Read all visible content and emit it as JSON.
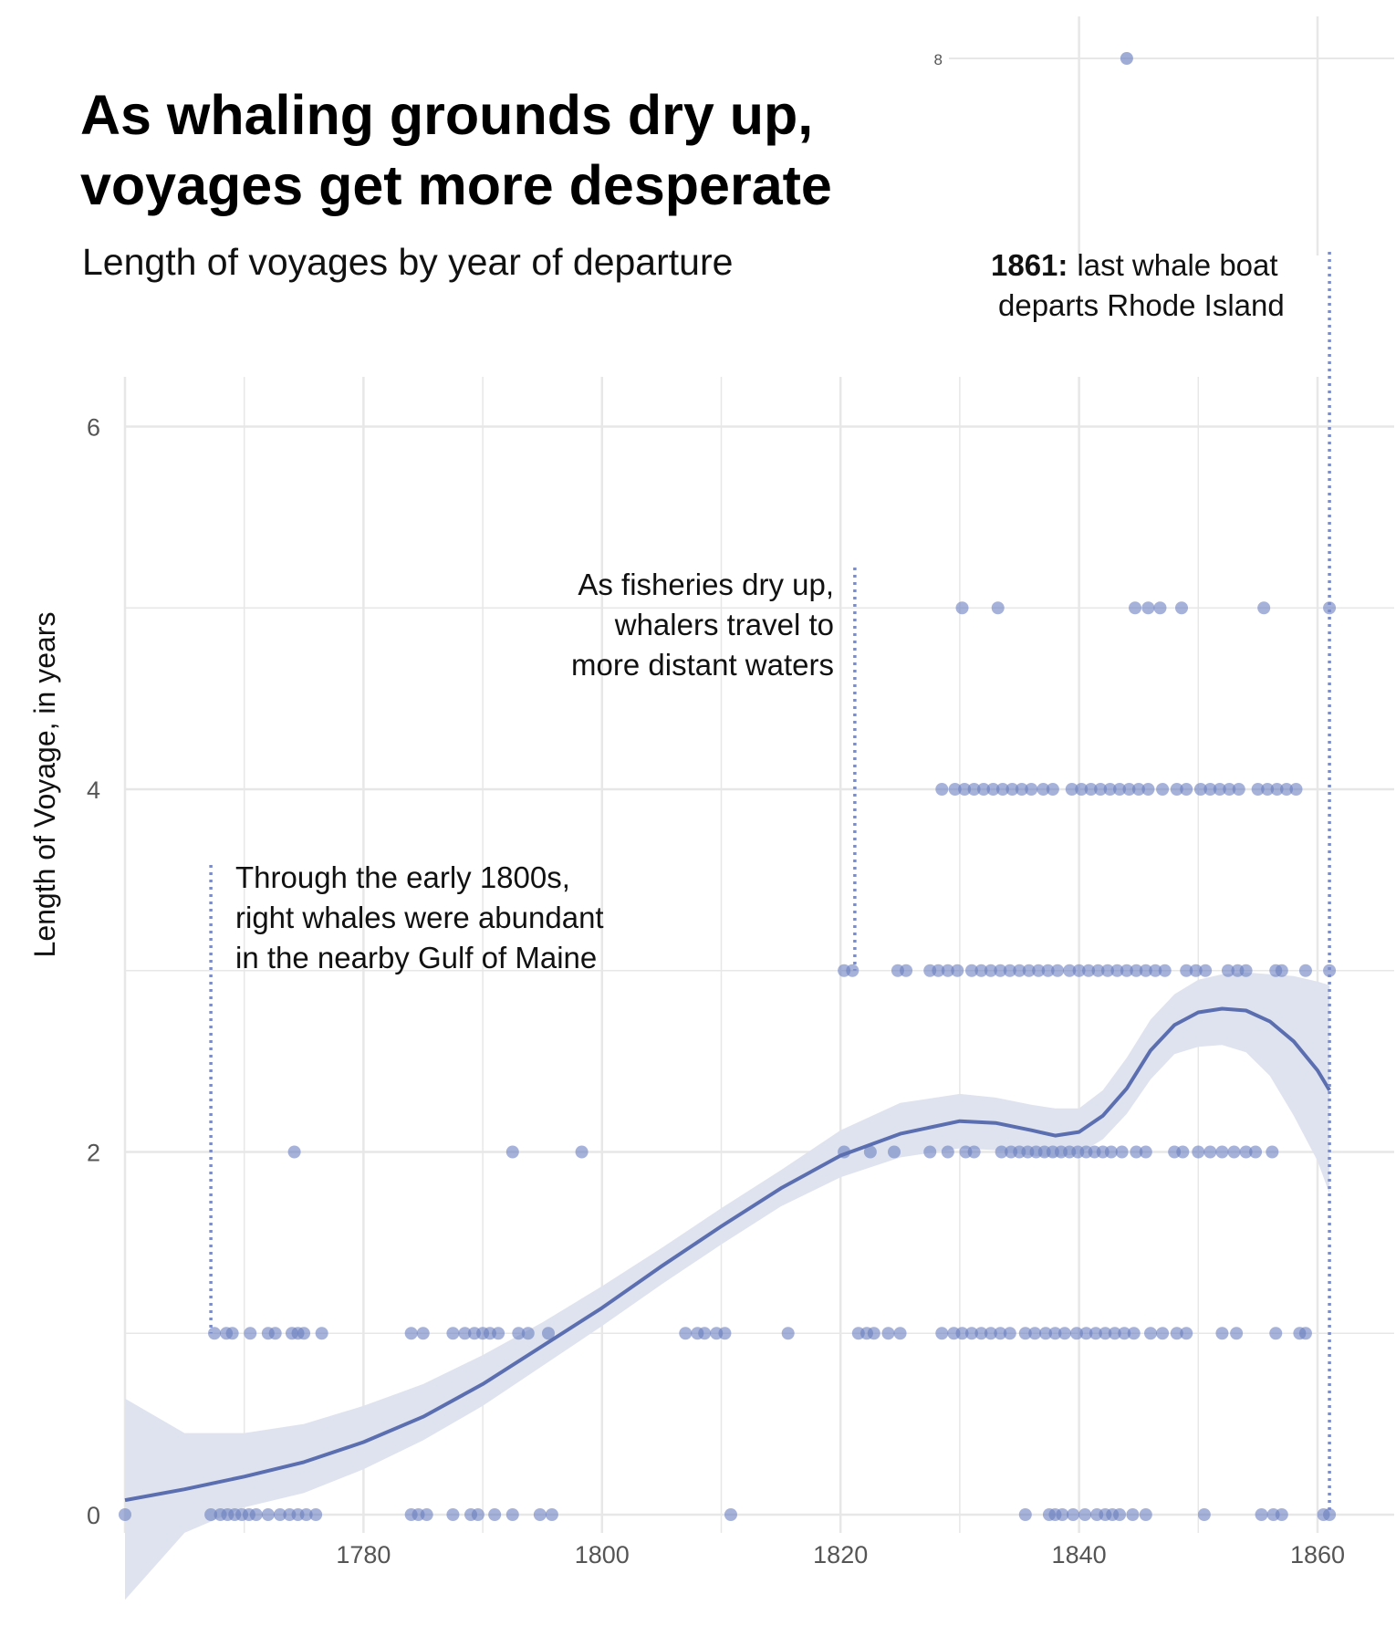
{
  "title": "As whaling grounds dry up, voyages get more desperate",
  "subtitle": "Length of voyages by year of departure",
  "chart_data": {
    "type": "scatter",
    "title": "As whaling grounds dry up, voyages get more desperate",
    "subtitle": "Length of voyages by year of departure",
    "xlabel": "",
    "ylabel": "Length of Voyage, in years",
    "xlim": [
      1760,
      1866
    ],
    "ylim": [
      0,
      6
    ],
    "x_ticks": [
      "1780",
      "1800",
      "1820",
      "1840",
      "1860"
    ],
    "y_ticks": [
      "0",
      "2",
      "4",
      "6"
    ],
    "grid": true,
    "inset": {
      "y_label": "8",
      "points": [
        [
          1844,
          8
        ]
      ]
    },
    "points": [
      [
        1760,
        0
      ],
      [
        1767.2,
        0
      ],
      [
        1768,
        0
      ],
      [
        1768.6,
        0
      ],
      [
        1769.2,
        0
      ],
      [
        1769.8,
        0
      ],
      [
        1770.4,
        0
      ],
      [
        1771,
        0
      ],
      [
        1772,
        0
      ],
      [
        1773,
        0
      ],
      [
        1773.8,
        0
      ],
      [
        1774.5,
        0
      ],
      [
        1775.2,
        0
      ],
      [
        1776,
        0
      ],
      [
        1784,
        0
      ],
      [
        1784.6,
        0
      ],
      [
        1785.3,
        0
      ],
      [
        1787.5,
        0
      ],
      [
        1789,
        0
      ],
      [
        1789.6,
        0
      ],
      [
        1791,
        0
      ],
      [
        1792.5,
        0
      ],
      [
        1794.8,
        0
      ],
      [
        1795.8,
        0
      ],
      [
        1810.8,
        0
      ],
      [
        1835.5,
        0
      ],
      [
        1837.5,
        0
      ],
      [
        1838,
        0
      ],
      [
        1838.6,
        0
      ],
      [
        1839.5,
        0
      ],
      [
        1840.5,
        0
      ],
      [
        1841.5,
        0
      ],
      [
        1842.2,
        0
      ],
      [
        1842.8,
        0
      ],
      [
        1843.4,
        0
      ],
      [
        1844.5,
        0
      ],
      [
        1845.6,
        0
      ],
      [
        1850.5,
        0
      ],
      [
        1855.3,
        0
      ],
      [
        1856.3,
        0
      ],
      [
        1857,
        0
      ],
      [
        1860.5,
        0
      ],
      [
        1861,
        0
      ],
      [
        1767.5,
        1
      ],
      [
        1768.5,
        1
      ],
      [
        1769,
        1
      ],
      [
        1770.5,
        1
      ],
      [
        1772,
        1
      ],
      [
        1772.6,
        1
      ],
      [
        1774,
        1
      ],
      [
        1774.5,
        1
      ],
      [
        1775,
        1
      ],
      [
        1776.5,
        1
      ],
      [
        1784,
        1
      ],
      [
        1785,
        1
      ],
      [
        1787.5,
        1
      ],
      [
        1788.5,
        1
      ],
      [
        1789.3,
        1
      ],
      [
        1790,
        1
      ],
      [
        1790.6,
        1
      ],
      [
        1791.3,
        1
      ],
      [
        1793,
        1
      ],
      [
        1793.8,
        1
      ],
      [
        1795.5,
        1
      ],
      [
        1807,
        1
      ],
      [
        1808,
        1
      ],
      [
        1808.6,
        1
      ],
      [
        1809.6,
        1
      ],
      [
        1810.3,
        1
      ],
      [
        1815.6,
        1
      ],
      [
        1821.5,
        1
      ],
      [
        1822.2,
        1
      ],
      [
        1822.8,
        1
      ],
      [
        1824,
        1
      ],
      [
        1825,
        1
      ],
      [
        1828.5,
        1
      ],
      [
        1829.5,
        1
      ],
      [
        1830.2,
        1
      ],
      [
        1831,
        1
      ],
      [
        1831.8,
        1
      ],
      [
        1832.6,
        1
      ],
      [
        1833.4,
        1
      ],
      [
        1834.2,
        1
      ],
      [
        1835.5,
        1
      ],
      [
        1836.3,
        1
      ],
      [
        1837.2,
        1
      ],
      [
        1838,
        1
      ],
      [
        1838.8,
        1
      ],
      [
        1839.8,
        1
      ],
      [
        1840.6,
        1
      ],
      [
        1841.4,
        1
      ],
      [
        1842.2,
        1
      ],
      [
        1843,
        1
      ],
      [
        1843.8,
        1
      ],
      [
        1844.6,
        1
      ],
      [
        1846,
        1
      ],
      [
        1847,
        1
      ],
      [
        1848.2,
        1
      ],
      [
        1849,
        1
      ],
      [
        1852,
        1
      ],
      [
        1853.2,
        1
      ],
      [
        1856.5,
        1
      ],
      [
        1858.5,
        1
      ],
      [
        1859,
        1
      ],
      [
        1774.2,
        2
      ],
      [
        1792.5,
        2
      ],
      [
        1798.3,
        2
      ],
      [
        1820.3,
        2
      ],
      [
        1822.5,
        2
      ],
      [
        1824.5,
        2
      ],
      [
        1827.5,
        2
      ],
      [
        1829,
        2
      ],
      [
        1830.5,
        2
      ],
      [
        1831.2,
        2
      ],
      [
        1833.5,
        2
      ],
      [
        1834.3,
        2
      ],
      [
        1835,
        2
      ],
      [
        1835.7,
        2
      ],
      [
        1836.4,
        2
      ],
      [
        1837.1,
        2
      ],
      [
        1837.8,
        2
      ],
      [
        1838.5,
        2
      ],
      [
        1839.2,
        2
      ],
      [
        1839.9,
        2
      ],
      [
        1840.6,
        2
      ],
      [
        1841.3,
        2
      ],
      [
        1842,
        2
      ],
      [
        1842.7,
        2
      ],
      [
        1843.6,
        2
      ],
      [
        1844.8,
        2
      ],
      [
        1845.6,
        2
      ],
      [
        1848,
        2
      ],
      [
        1848.7,
        2
      ],
      [
        1850,
        2
      ],
      [
        1851,
        2
      ],
      [
        1852,
        2
      ],
      [
        1853,
        2
      ],
      [
        1854,
        2
      ],
      [
        1854.8,
        2
      ],
      [
        1856.2,
        2
      ],
      [
        1820.3,
        3
      ],
      [
        1821,
        3
      ],
      [
        1824.8,
        3
      ],
      [
        1825.5,
        3
      ],
      [
        1827.5,
        3
      ],
      [
        1828.2,
        3
      ],
      [
        1829,
        3
      ],
      [
        1829.8,
        3
      ],
      [
        1831,
        3
      ],
      [
        1831.8,
        3
      ],
      [
        1832.6,
        3
      ],
      [
        1833.4,
        3
      ],
      [
        1834.2,
        3
      ],
      [
        1835,
        3
      ],
      [
        1835.8,
        3
      ],
      [
        1836.6,
        3
      ],
      [
        1837.4,
        3
      ],
      [
        1838.2,
        3
      ],
      [
        1839.2,
        3
      ],
      [
        1840,
        3
      ],
      [
        1840.8,
        3
      ],
      [
        1841.6,
        3
      ],
      [
        1842.4,
        3
      ],
      [
        1843.2,
        3
      ],
      [
        1844,
        3
      ],
      [
        1844.8,
        3
      ],
      [
        1845.6,
        3
      ],
      [
        1846.4,
        3
      ],
      [
        1847.2,
        3
      ],
      [
        1849,
        3
      ],
      [
        1849.8,
        3
      ],
      [
        1850.6,
        3
      ],
      [
        1852.5,
        3
      ],
      [
        1853.3,
        3
      ],
      [
        1854,
        3
      ],
      [
        1856.5,
        3
      ],
      [
        1857,
        3
      ],
      [
        1859,
        3
      ],
      [
        1861,
        3
      ],
      [
        1828.5,
        4
      ],
      [
        1829.6,
        4
      ],
      [
        1830.4,
        4
      ],
      [
        1831.2,
        4
      ],
      [
        1832,
        4
      ],
      [
        1832.8,
        4
      ],
      [
        1833.6,
        4
      ],
      [
        1834.4,
        4
      ],
      [
        1835.2,
        4
      ],
      [
        1836,
        4
      ],
      [
        1837,
        4
      ],
      [
        1837.8,
        4
      ],
      [
        1839.4,
        4
      ],
      [
        1840.2,
        4
      ],
      [
        1841,
        4
      ],
      [
        1841.8,
        4
      ],
      [
        1842.6,
        4
      ],
      [
        1843.4,
        4
      ],
      [
        1844.2,
        4
      ],
      [
        1845,
        4
      ],
      [
        1845.8,
        4
      ],
      [
        1847,
        4
      ],
      [
        1848.2,
        4
      ],
      [
        1849,
        4
      ],
      [
        1850.2,
        4
      ],
      [
        1851,
        4
      ],
      [
        1851.8,
        4
      ],
      [
        1852.6,
        4
      ],
      [
        1853.4,
        4
      ],
      [
        1855,
        4
      ],
      [
        1855.8,
        4
      ],
      [
        1856.6,
        4
      ],
      [
        1857.4,
        4
      ],
      [
        1858.2,
        4
      ],
      [
        1830.2,
        5
      ],
      [
        1833.2,
        5
      ],
      [
        1844.7,
        5
      ],
      [
        1845.8,
        5
      ],
      [
        1846.8,
        5
      ],
      [
        1848.6,
        5
      ],
      [
        1855.5,
        5
      ],
      [
        1861,
        5
      ]
    ],
    "smooth": {
      "x": [
        1760,
        1765,
        1770,
        1775,
        1780,
        1785,
        1790,
        1795,
        1800,
        1805,
        1810,
        1815,
        1820,
        1825,
        1830,
        1833,
        1836,
        1838,
        1840,
        1842,
        1844,
        1846,
        1848,
        1850,
        1852,
        1854,
        1856,
        1858,
        1860,
        1861
      ],
      "y": [
        0.08,
        0.14,
        0.21,
        0.29,
        0.4,
        0.54,
        0.72,
        0.93,
        1.14,
        1.37,
        1.59,
        1.8,
        1.98,
        2.1,
        2.17,
        2.16,
        2.12,
        2.09,
        2.11,
        2.2,
        2.35,
        2.56,
        2.7,
        2.77,
        2.79,
        2.78,
        2.72,
        2.61,
        2.45,
        2.34
      ],
      "lower": [
        -0.47,
        -0.1,
        0.04,
        0.12,
        0.25,
        0.41,
        0.6,
        0.82,
        1.04,
        1.27,
        1.49,
        1.7,
        1.86,
        1.97,
        2.02,
        2.01,
        1.98,
        1.97,
        1.99,
        2.07,
        2.21,
        2.4,
        2.54,
        2.58,
        2.59,
        2.55,
        2.42,
        2.2,
        1.95,
        1.77
      ],
      "upper": [
        0.64,
        0.45,
        0.45,
        0.5,
        0.6,
        0.72,
        0.88,
        1.06,
        1.26,
        1.47,
        1.69,
        1.9,
        2.12,
        2.27,
        2.32,
        2.3,
        2.26,
        2.24,
        2.24,
        2.34,
        2.52,
        2.73,
        2.87,
        2.95,
        2.98,
        2.99,
        2.98,
        2.97,
        2.94,
        2.92
      ]
    },
    "annotations": {
      "early": [
        "Through the early 1800s,",
        "right whales were abundant",
        "in the nearby Gulf of Maine"
      ],
      "mid": [
        "As fisheries dry up,",
        "whalers travel to",
        "more distant waters"
      ],
      "last_year": "1861:",
      "last_line1": "last whale boat",
      "last_line2": "departs Rhode Island"
    },
    "colors": {
      "points": "#6b7fbf",
      "line": "#5b6eb0",
      "band": "#dfe3ef",
      "guide": "#7b8cc6",
      "grid": "#e7e7e7"
    }
  }
}
